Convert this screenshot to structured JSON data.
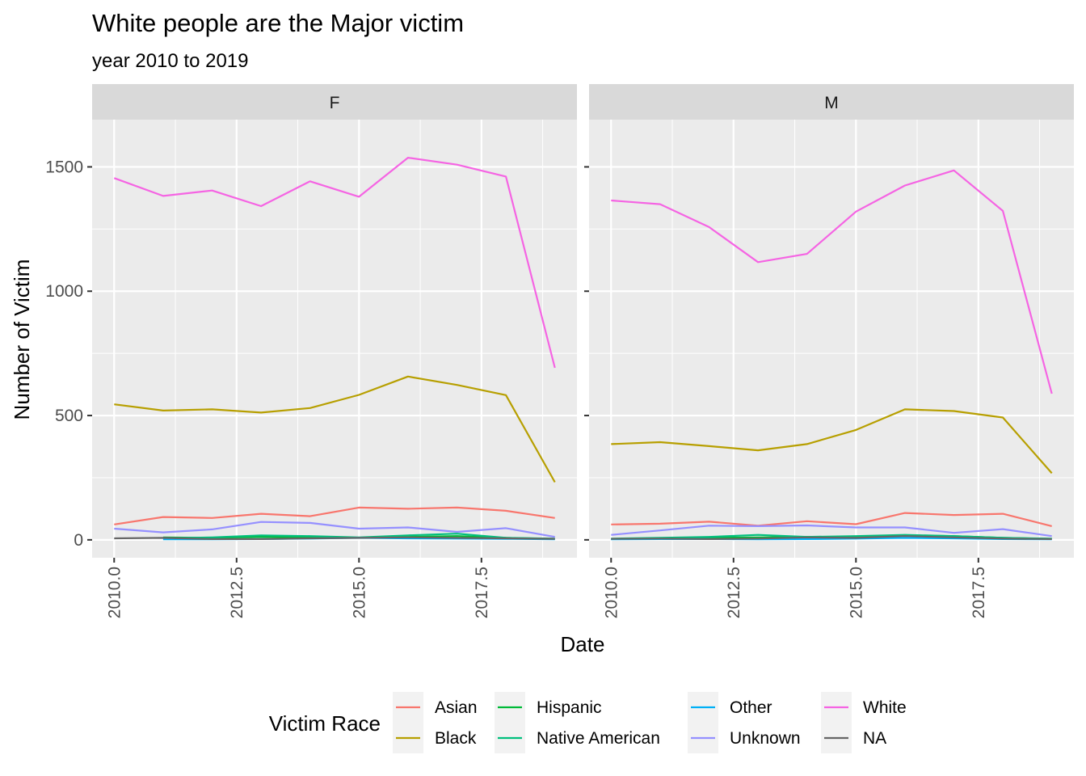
{
  "chart_data": {
    "type": "line",
    "title": "White people are the Major victim",
    "subtitle": "year 2010 to 2019",
    "xlabel": "Date",
    "ylabel": "Number of Victim",
    "xlim": [
      2010,
      2019
    ],
    "ylim": [
      0,
      1600
    ],
    "x_ticks": [
      2010.0,
      2012.5,
      2015.0,
      2017.5
    ],
    "x_tick_labels": [
      "2010.0",
      "2012.5",
      "2015.0",
      "2017.5"
    ],
    "y_ticks": [
      0,
      500,
      1000,
      1500
    ],
    "y_tick_labels": [
      "0",
      "500",
      "1000",
      "1500"
    ],
    "grid": true,
    "legend": {
      "title": "Victim Race",
      "position": "bottom",
      "entries": [
        {
          "name": "Asian",
          "color": "#F8766D"
        },
        {
          "name": "Black",
          "color": "#B79F00"
        },
        {
          "name": "Hispanic",
          "color": "#00BA38"
        },
        {
          "name": "Native American",
          "color": "#00BF7D"
        },
        {
          "name": "Other",
          "color": "#00B0F6"
        },
        {
          "name": "Unknown",
          "color": "#9590FF"
        },
        {
          "name": "White",
          "color": "#F564E3"
        },
        {
          "name": "NA",
          "color": "#666666"
        }
      ]
    },
    "x": [
      2010,
      2011,
      2012,
      2013,
      2014,
      2015,
      2016,
      2017,
      2018,
      2019
    ],
    "panels": [
      {
        "label": "F",
        "series": [
          {
            "name": "Asian",
            "color": "#F8766D",
            "values": [
              62,
              92,
              88,
              105,
              95,
              130,
              125,
              130,
              117,
              88
            ]
          },
          {
            "name": "Black",
            "color": "#B79F00",
            "values": [
              545,
              520,
              525,
              512,
              530,
              583,
              657,
              623,
              582,
              232
            ]
          },
          {
            "name": "Hispanic",
            "color": "#00BA38",
            "values": [
              null,
              10,
              8,
              12,
              10,
              8,
              12,
              15,
              8,
              4
            ]
          },
          {
            "name": "Native American",
            "color": "#00BF7D",
            "values": [
              null,
              6,
              10,
              18,
              15,
              10,
              18,
              25,
              8,
              5
            ]
          },
          {
            "name": "Other",
            "color": "#00B0F6",
            "values": [
              null,
              2,
              2,
              3,
              5,
              8,
              6,
              5,
              4,
              2
            ]
          },
          {
            "name": "Unknown",
            "color": "#9590FF",
            "values": [
              45,
              30,
              42,
              72,
              68,
              45,
              50,
              32,
              47,
              12
            ]
          },
          {
            "name": "White",
            "color": "#F564E3",
            "values": [
              1455,
              1383,
              1405,
              1342,
              1442,
              1380,
              1537,
              1509,
              1461,
              692
            ]
          },
          {
            "name": "NA",
            "color": "#666666",
            "values": [
              6,
              8,
              3,
              3,
              6,
              8,
              10,
              8,
              6,
              4
            ]
          }
        ]
      },
      {
        "label": "M",
        "series": [
          {
            "name": "Asian",
            "color": "#F8766D",
            "values": [
              62,
              65,
              73,
              57,
              75,
              63,
              108,
              100,
              105,
              55
            ]
          },
          {
            "name": "Black",
            "color": "#B79F00",
            "values": [
              385,
              393,
              377,
              360,
              385,
              442,
              525,
              518,
              492,
              268
            ]
          },
          {
            "name": "Hispanic",
            "color": "#00BA38",
            "values": [
              3,
              5,
              8,
              10,
              12,
              10,
              18,
              15,
              8,
              4
            ]
          },
          {
            "name": "Native American",
            "color": "#00BF7D",
            "values": [
              5,
              8,
              12,
              20,
              12,
              15,
              20,
              15,
              8,
              5
            ]
          },
          {
            "name": "Other",
            "color": "#00B0F6",
            "values": [
              2,
              3,
              3,
              2,
              3,
              5,
              8,
              6,
              3,
              2
            ]
          },
          {
            "name": "Unknown",
            "color": "#9590FF",
            "values": [
              20,
              38,
              57,
              55,
              58,
              50,
              50,
              28,
              43,
              15
            ]
          },
          {
            "name": "White",
            "color": "#F564E3",
            "values": [
              1365,
              1350,
              1258,
              1117,
              1150,
              1320,
              1425,
              1486,
              1323,
              588
            ]
          },
          {
            "name": "NA",
            "color": "#666666",
            "values": [
              4,
              5,
              3,
              5,
              10,
              8,
              15,
              10,
              5,
              3
            ]
          }
        ]
      }
    ]
  }
}
